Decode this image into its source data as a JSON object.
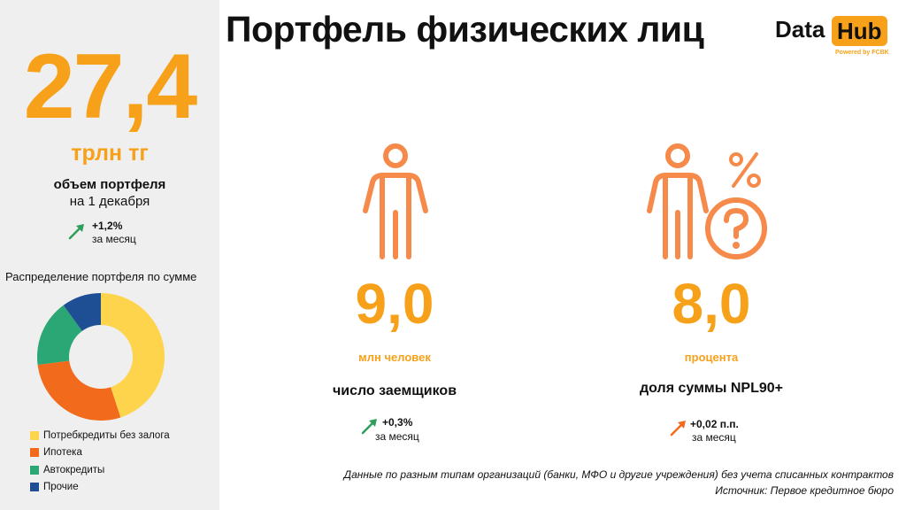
{
  "title": "Портфель физических лиц",
  "logo": {
    "data": "Data",
    "hub": "Hub",
    "powered": "Powered by FCBK"
  },
  "portfolio": {
    "value": "27,4",
    "unit": "трлн тг",
    "caption": "объем портфеля",
    "date": "на 1 декабря",
    "delta_value": "+1,2%",
    "delta_period": "за месяц"
  },
  "borrowers": {
    "value": "9,0",
    "unit": "млн человек",
    "caption": "число заемщиков",
    "delta_value": "+0,3%",
    "delta_period": "за месяц"
  },
  "npl": {
    "value": "8,0",
    "unit": "процента",
    "caption": "доля суммы NPL90+",
    "delta_value": "+0,02 п.п.",
    "delta_period": "за месяц"
  },
  "notes": {
    "line1": "Данные по разным типам организаций (банки, МФО и другие учреждения) без учета списанных контрактов",
    "line2": "Источник: Первое кредитное бюро"
  },
  "colors": {
    "accent": "#f7a11a",
    "icon": "#f58a4b",
    "up_green": "#2e9e5b",
    "up_orange": "#f26b1d"
  },
  "icons": {
    "person": "person-icon",
    "person_question": "person-question-icon",
    "percent": "percent-icon"
  },
  "chart_data": {
    "type": "pie",
    "subtype": "donut",
    "title": "Распределение портфеля по сумме",
    "categories": [
      "Потребкредиты без залога",
      "Ипотека",
      "Автокредиты",
      "Прочие"
    ],
    "values": [
      45,
      28,
      17,
      10
    ],
    "colors": [
      "#fdd44b",
      "#f26b1d",
      "#2aa774",
      "#1e4f95"
    ],
    "legend_position": "bottom"
  }
}
